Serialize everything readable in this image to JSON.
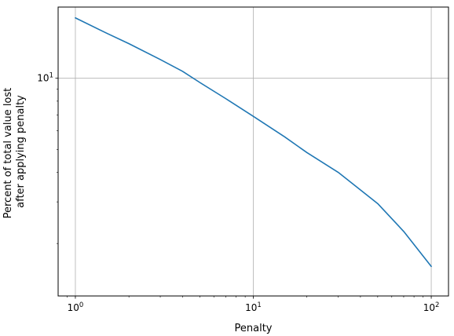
{
  "chart_data": {
    "type": "line",
    "title": "",
    "xlabel": "Penalty",
    "ylabel_lines": [
      "Percent of total value lost",
      "after applying penalty"
    ],
    "xscale": "log",
    "yscale": "log",
    "xlim": [
      0.8,
      125
    ],
    "ylim": [
      1.2,
      20
    ],
    "grid": true,
    "x_ticks": [
      {
        "value": 1,
        "base": "10",
        "exp": "0"
      },
      {
        "value": 10,
        "base": "10",
        "exp": "1"
      },
      {
        "value": 100,
        "base": "10",
        "exp": "2"
      }
    ],
    "y_ticks": [
      {
        "value": 10,
        "base": "10",
        "exp": "1"
      }
    ],
    "series": [
      {
        "color": "#1f77b4",
        "x": [
          1,
          1.5,
          2,
          3,
          4,
          5,
          7,
          10,
          15,
          20,
          30,
          50,
          70,
          100
        ],
        "y": [
          18.0,
          15.5,
          14.0,
          12.0,
          10.7,
          9.6,
          8.2,
          6.9,
          5.65,
          4.85,
          4.0,
          2.95,
          2.25,
          1.6
        ]
      }
    ]
  }
}
